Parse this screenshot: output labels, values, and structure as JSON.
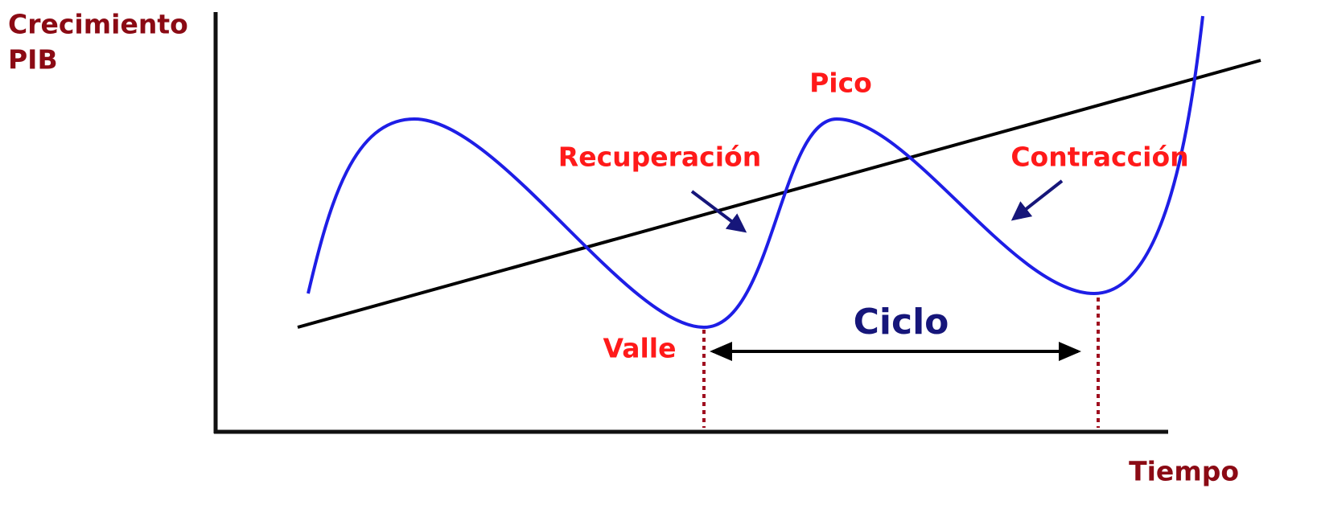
{
  "y_axis_label": {
    "line1": "Crecimiento",
    "line2": "PIB"
  },
  "x_axis_label": "Tiempo",
  "labels": {
    "peak": "Pico",
    "recovery": "Recuperación",
    "contraction": "Contracción",
    "trough": "Valle",
    "cycle": "Ciclo"
  }
}
